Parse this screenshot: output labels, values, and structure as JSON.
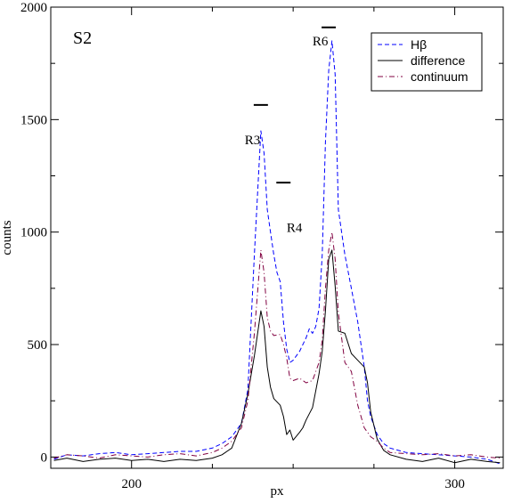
{
  "chart_data": {
    "type": "line",
    "panel_label": "S2",
    "xlabel": "px",
    "ylabel": "counts",
    "xlim": [
      175,
      315
    ],
    "ylim": [
      -50,
      2000
    ],
    "x_ticks": [
      200,
      300
    ],
    "y_ticks": [
      0,
      500,
      1000,
      1500,
      2000
    ],
    "grid": false,
    "legend_position": "top-right",
    "series": [
      {
        "name": "Hβ",
        "color": "#0000ff",
        "dash": "dashed",
        "points": [
          [
            176,
            -10
          ],
          [
            180,
            10
          ],
          [
            185,
            5
          ],
          [
            190,
            15
          ],
          [
            195,
            20
          ],
          [
            200,
            10
          ],
          [
            205,
            15
          ],
          [
            210,
            20
          ],
          [
            215,
            25
          ],
          [
            220,
            25
          ],
          [
            225,
            40
          ],
          [
            228,
            60
          ],
          [
            231,
            90
          ],
          [
            234,
            150
          ],
          [
            236,
            300
          ],
          [
            238,
            900
          ],
          [
            240,
            1450
          ],
          [
            241,
            1350
          ],
          [
            242,
            1100
          ],
          [
            243,
            1000
          ],
          [
            244,
            900
          ],
          [
            245,
            820
          ],
          [
            246,
            780
          ],
          [
            247,
            600
          ],
          [
            248,
            480
          ],
          [
            249,
            420
          ],
          [
            250,
            430
          ],
          [
            252,
            470
          ],
          [
            254,
            530
          ],
          [
            255,
            570
          ],
          [
            256,
            550
          ],
          [
            257,
            580
          ],
          [
            258,
            660
          ],
          [
            259,
            900
          ],
          [
            260,
            1400
          ],
          [
            261,
            1720
          ],
          [
            262,
            1850
          ],
          [
            263,
            1700
          ],
          [
            264,
            1100
          ],
          [
            266,
            900
          ],
          [
            268,
            750
          ],
          [
            270,
            600
          ],
          [
            272,
            400
          ],
          [
            273,
            250
          ],
          [
            274,
            180
          ],
          [
            276,
            100
          ],
          [
            278,
            60
          ],
          [
            280,
            40
          ],
          [
            285,
            20
          ],
          [
            290,
            15
          ],
          [
            295,
            10
          ],
          [
            300,
            5
          ],
          [
            305,
            0
          ],
          [
            310,
            -10
          ],
          [
            314,
            -30
          ]
        ]
      },
      {
        "name": "difference",
        "color": "#000000",
        "dash": "solid",
        "points": [
          [
            176,
            -15
          ],
          [
            180,
            -5
          ],
          [
            185,
            -20
          ],
          [
            190,
            -10
          ],
          [
            195,
            -5
          ],
          [
            200,
            -15
          ],
          [
            205,
            -10
          ],
          [
            210,
            -20
          ],
          [
            215,
            -10
          ],
          [
            220,
            -15
          ],
          [
            225,
            -5
          ],
          [
            228,
            10
          ],
          [
            231,
            40
          ],
          [
            234,
            150
          ],
          [
            236,
            280
          ],
          [
            238,
            450
          ],
          [
            240,
            650
          ],
          [
            241,
            580
          ],
          [
            242,
            400
          ],
          [
            243,
            310
          ],
          [
            244,
            260
          ],
          [
            246,
            230
          ],
          [
            247,
            180
          ],
          [
            248,
            100
          ],
          [
            249,
            120
          ],
          [
            250,
            75
          ],
          [
            252,
            110
          ],
          [
            253,
            130
          ],
          [
            254,
            165
          ],
          [
            256,
            220
          ],
          [
            258,
            370
          ],
          [
            259,
            470
          ],
          [
            260,
            650
          ],
          [
            261,
            880
          ],
          [
            262,
            920
          ],
          [
            263,
            760
          ],
          [
            264,
            560
          ],
          [
            266,
            550
          ],
          [
            268,
            460
          ],
          [
            270,
            430
          ],
          [
            272,
            400
          ],
          [
            273,
            330
          ],
          [
            274,
            200
          ],
          [
            276,
            80
          ],
          [
            278,
            30
          ],
          [
            280,
            10
          ],
          [
            285,
            -10
          ],
          [
            290,
            -20
          ],
          [
            295,
            -5
          ],
          [
            300,
            -25
          ],
          [
            305,
            -10
          ],
          [
            310,
            -20
          ],
          [
            314,
            -25
          ]
        ]
      },
      {
        "name": "continuum",
        "color": "#800040",
        "dash": "dashdot",
        "points": [
          [
            176,
            -5
          ],
          [
            180,
            10
          ],
          [
            185,
            5
          ],
          [
            190,
            -5
          ],
          [
            195,
            10
          ],
          [
            200,
            5
          ],
          [
            205,
            0
          ],
          [
            210,
            10
          ],
          [
            215,
            15
          ],
          [
            220,
            5
          ],
          [
            225,
            20
          ],
          [
            228,
            40
          ],
          [
            231,
            70
          ],
          [
            234,
            130
          ],
          [
            236,
            250
          ],
          [
            238,
            550
          ],
          [
            240,
            920
          ],
          [
            241,
            820
          ],
          [
            242,
            620
          ],
          [
            243,
            560
          ],
          [
            244,
            540
          ],
          [
            246,
            545
          ],
          [
            247,
            500
          ],
          [
            248,
            440
          ],
          [
            249,
            350
          ],
          [
            250,
            340
          ],
          [
            252,
            350
          ],
          [
            254,
            330
          ],
          [
            256,
            340
          ],
          [
            258,
            420
          ],
          [
            259,
            520
          ],
          [
            260,
            750
          ],
          [
            261,
            920
          ],
          [
            262,
            1000
          ],
          [
            263,
            880
          ],
          [
            264,
            640
          ],
          [
            266,
            420
          ],
          [
            268,
            380
          ],
          [
            270,
            230
          ],
          [
            272,
            130
          ],
          [
            274,
            90
          ],
          [
            276,
            70
          ],
          [
            278,
            40
          ],
          [
            280,
            20
          ],
          [
            285,
            15
          ],
          [
            290,
            10
          ],
          [
            295,
            15
          ],
          [
            300,
            5
          ],
          [
            305,
            10
          ],
          [
            310,
            0
          ],
          [
            314,
            -5
          ]
        ]
      }
    ],
    "annotations": [
      {
        "text": "R3",
        "x": 235,
        "y": 1390
      },
      {
        "text": "R4",
        "x": 248,
        "y": 1000
      },
      {
        "text": "R6",
        "x": 256,
        "y": 1830
      }
    ],
    "markers": [
      {
        "x1": 237.8,
        "x2": 242.2,
        "y": 1565
      },
      {
        "x1": 244.8,
        "x2": 249.2,
        "y": 1220
      },
      {
        "x1": 258.8,
        "x2": 263.2,
        "y": 1910
      }
    ]
  }
}
